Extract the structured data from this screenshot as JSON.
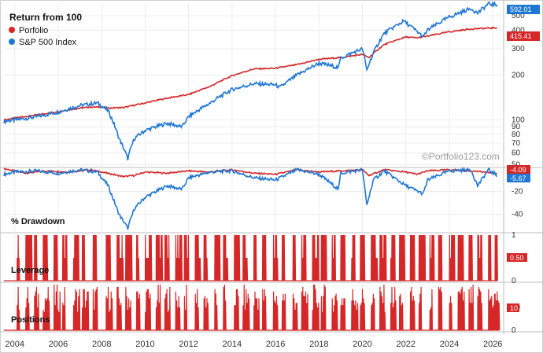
{
  "chart_data": {
    "type": "line",
    "title": "Return from 100",
    "watermark": "©Portfolio123.com",
    "colors": {
      "portfolio": "#d62728",
      "index": "#1f77d4",
      "grid": "#e6e6e6"
    },
    "x_ticks": [
      "2004",
      "2006",
      "2008",
      "2010",
      "2012",
      "2014",
      "2016",
      "2018",
      "2020",
      "2022",
      "2024",
      "2026"
    ],
    "x_range": [
      2003.5,
      2026.5
    ],
    "returns_panel": {
      "scale": "log",
      "y_ticks": [
        "500",
        "400",
        "300",
        "200",
        "100",
        "90",
        "80",
        "70",
        "60",
        "50"
      ],
      "y_range": [
        48,
        600
      ],
      "series": [
        {
          "name": "Porfolio",
          "color": "#d62728",
          "last_value_label": "415.41",
          "x": [
            2003.5,
            2004,
            2005,
            2006,
            2007,
            2007.5,
            2008,
            2008.3,
            2008.8,
            2009,
            2010,
            2011,
            2012,
            2013,
            2014,
            2015,
            2016,
            2017,
            2018,
            2019,
            2020,
            2020.3,
            2021,
            2022,
            2022.5,
            2023,
            2024,
            2025,
            2026.2
          ],
          "values": [
            100,
            103,
            108,
            114,
            120,
            122,
            122,
            120,
            121,
            121,
            130,
            140,
            148,
            168,
            198,
            220,
            222,
            235,
            255,
            262,
            275,
            262,
            320,
            360,
            355,
            365,
            390,
            408,
            415
          ]
        },
        {
          "name": "S&P 500 Index",
          "color": "#1f77d4",
          "last_value_label": "592.01",
          "x": [
            2003.5,
            2004,
            2005,
            2006,
            2007,
            2007.8,
            2008.3,
            2008.8,
            2009.2,
            2009.5,
            2010,
            2011,
            2011.7,
            2012,
            2013,
            2014,
            2015,
            2016,
            2016.2,
            2017,
            2018,
            2018.9,
            2019,
            2020,
            2020.2,
            2020.5,
            2021,
            2021.9,
            2022.8,
            2023,
            2024,
            2025,
            2025.3,
            2025.8,
            2026.2
          ],
          "values": [
            98,
            100,
            105,
            113,
            125,
            130,
            115,
            75,
            55,
            75,
            85,
            95,
            90,
            105,
            130,
            160,
            175,
            172,
            165,
            200,
            240,
            225,
            260,
            300,
            215,
            280,
            380,
            460,
            360,
            400,
            490,
            560,
            520,
            600,
            592
          ]
        }
      ]
    },
    "drawdown_panel": {
      "label": "% Drawdown",
      "y_ticks": [
        "-20",
        "-40"
      ],
      "y_range": [
        -56,
        1
      ],
      "series": [
        {
          "name": "Porfolio",
          "color": "#d62728",
          "last_value_label": "-4.09",
          "x": [
            2003.5,
            2004.5,
            2005.5,
            2006.5,
            2007.5,
            2008,
            2008.5,
            2009,
            2009.5,
            2010,
            2011,
            2012,
            2013,
            2014,
            2015,
            2016,
            2017,
            2018,
            2019,
            2020,
            2020.3,
            2021,
            2022,
            2022.5,
            2023,
            2024,
            2025,
            2026.2
          ],
          "values": [
            0,
            -4,
            -2,
            -3,
            -1,
            -3,
            -5,
            -7,
            -6,
            -3,
            -4,
            -2,
            -3,
            -1,
            -4,
            -5,
            -1,
            -3,
            -2,
            -1,
            -6,
            -1,
            -3,
            -5,
            -2,
            -1,
            -2,
            -4
          ]
        },
        {
          "name": "S&P 500 Index",
          "color": "#1f77d4",
          "last_value_label": "-5.67",
          "x": [
            2003.5,
            2004,
            2005,
            2006,
            2007,
            2007.8,
            2008.3,
            2008.8,
            2009.2,
            2009.5,
            2010,
            2011,
            2011.7,
            2012,
            2013,
            2014,
            2015,
            2016,
            2017,
            2018,
            2018.9,
            2019,
            2020,
            2020.2,
            2020.5,
            2021,
            2022,
            2022.8,
            2023,
            2024,
            2025,
            2025.3,
            2025.8,
            2026.2
          ],
          "values": [
            -5,
            -3,
            -2,
            -4,
            -1,
            -3,
            -15,
            -40,
            -52,
            -35,
            -25,
            -15,
            -18,
            -8,
            -3,
            -2,
            -8,
            -10,
            -1,
            -5,
            -18,
            -4,
            -1,
            -32,
            -10,
            -2,
            -15,
            -22,
            -10,
            -2,
            -1,
            -15,
            -1,
            -6
          ]
        }
      ]
    },
    "leverage_panel": {
      "label": "Leverage",
      "y_ticks": [
        "1",
        "0"
      ],
      "y_range": [
        0,
        1
      ],
      "last_value_label": "0.50",
      "color": "#d62728",
      "switch_years": [
        2004.1,
        2004.5,
        2004.9,
        2005.3,
        2005.8,
        2006.2,
        2006.7,
        2007.1,
        2007.6,
        2008.2,
        2008.7,
        2009.1,
        2009.6,
        2010,
        2010.5,
        2010.9,
        2011.4,
        2011.8,
        2012.3,
        2012.7,
        2013.2,
        2013.6,
        2014.1,
        2014.5,
        2015,
        2015.4,
        2015.9,
        2016.3,
        2016.8,
        2017.2,
        2017.7,
        2018.1,
        2018.6,
        2019,
        2019.5,
        2019.9,
        2020.4,
        2020.8,
        2021.3,
        2021.7,
        2022.2,
        2022.6,
        2023.1,
        2023.5,
        2024,
        2024.4,
        2024.9,
        2025.3,
        2025.8,
        2026.1
      ]
    },
    "positions_panel": {
      "label": "Positions",
      "y_ticks": [
        "10",
        "0"
      ],
      "y_range": [
        0,
        20
      ],
      "last_value_label": "10",
      "color": "#d62728"
    }
  }
}
